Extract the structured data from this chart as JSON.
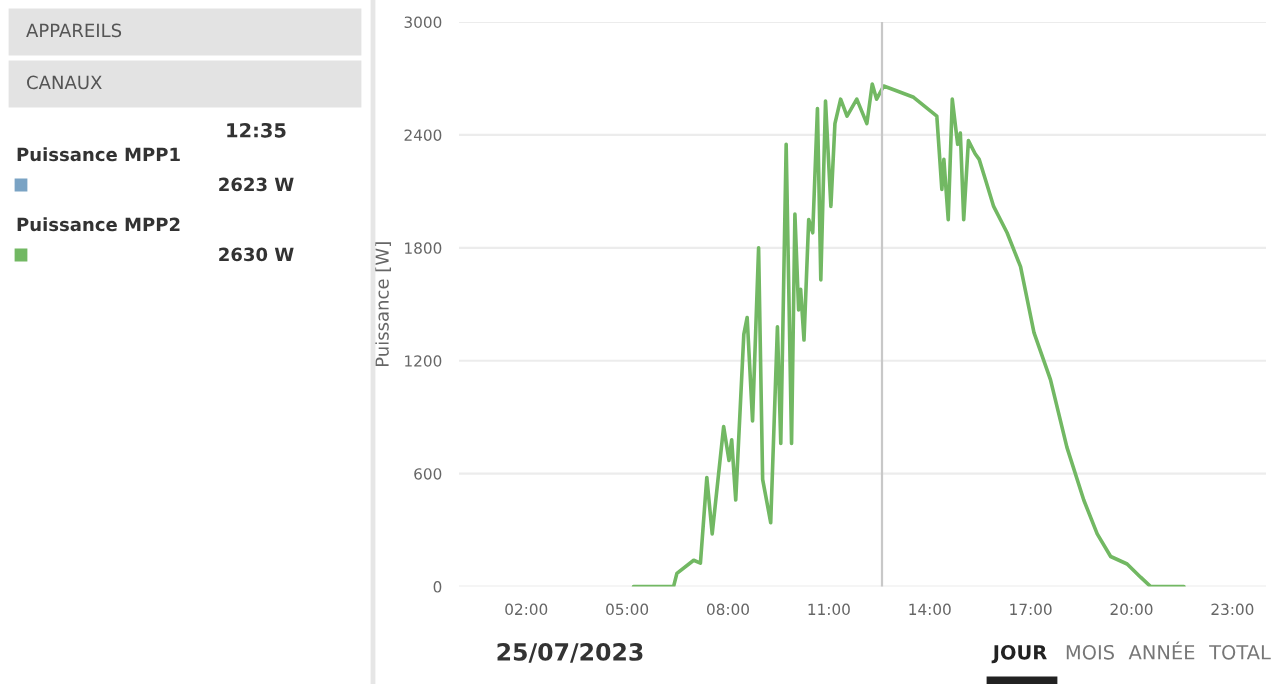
{
  "chart_data": {
    "type": "line",
    "ylabel": "Puissance [W]",
    "x": [
      5.19,
      6.38,
      6.48,
      6.98,
      7.18,
      7.37,
      7.53,
      7.87,
      8.03,
      8.11,
      8.23,
      8.47,
      8.57,
      8.73,
      8.91,
      9.03,
      9.27,
      9.47,
      9.57,
      9.73,
      9.89,
      9.99,
      10.1,
      10.16,
      10.26,
      10.4,
      10.52,
      10.66,
      10.76,
      10.9,
      11.06,
      11.18,
      11.35,
      11.54,
      11.83,
      12.13,
      12.29,
      12.42,
      12.63,
      12.93,
      13.52,
      14.21,
      14.36,
      14.42,
      14.55,
      14.67,
      14.83,
      14.91,
      15.01,
      15.15,
      15.35,
      15.47,
      15.66,
      15.9,
      16.3,
      16.7,
      17.1,
      17.59,
      18.08,
      18.58,
      18.98,
      19.38,
      19.87,
      20.27,
      20.57,
      21.56
    ],
    "series": [
      {
        "color": "#72b863",
        "values": [
          0,
          0,
          70,
          140,
          125,
          580,
          280,
          850,
          670,
          780,
          460,
          1340,
          1430,
          880,
          1800,
          570,
          340,
          1380,
          760,
          2350,
          760,
          1980,
          1470,
          1580,
          1310,
          1950,
          1880,
          2540,
          1630,
          2580,
          2020,
          2460,
          2590,
          2500,
          2590,
          2460,
          2670,
          2590,
          2660,
          2640,
          2600,
          2500,
          2110,
          2270,
          1950,
          2590,
          2350,
          2410,
          1950,
          2370,
          2300,
          2270,
          2160,
          2020,
          1880,
          1700,
          1350,
          1100,
          740,
          460,
          280,
          160,
          120,
          50,
          0,
          0
        ]
      }
    ],
    "xlim": [
      0,
      24
    ],
    "xticks": [
      {
        "value": 2,
        "label": "02:00"
      },
      {
        "value": 5,
        "label": "05:00"
      },
      {
        "value": 8,
        "label": "08:00"
      },
      {
        "value": 11,
        "label": "11:00"
      },
      {
        "value": 14,
        "label": "14:00"
      },
      {
        "value": 17,
        "label": "17:00"
      },
      {
        "value": 20,
        "label": "20:00"
      },
      {
        "value": 23,
        "label": "23:00"
      }
    ],
    "ylim": [
      0,
      3000
    ],
    "yticks": [
      0,
      600,
      1200,
      1800,
      2400,
      3000
    ],
    "grid": "y",
    "legend": false,
    "marker": "none",
    "line_style": "solid",
    "ref_lines": [
      {
        "axis": "x",
        "value": 12.58,
        "color": "#c8c8c8"
      }
    ],
    "annotations": [
      "APPAREILS",
      "CANAUX",
      "12:35",
      "Puissance MPP1",
      "2623 W",
      "Puissance MPP2",
      "2630 W",
      "25/07/2023",
      "JOUR",
      "MOIS",
      "ANNÉE",
      "TOTAL"
    ]
  }
}
